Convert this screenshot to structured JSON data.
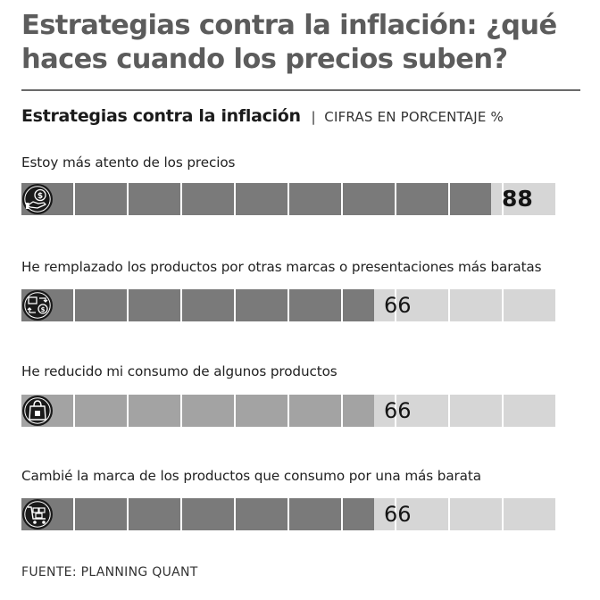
{
  "header": {
    "title": "Estrategias contra la inflación: ¿qué haces cuando los precios suben?"
  },
  "subtitle": {
    "label": "Estrategias contra la inflación",
    "separator": "|",
    "unit": "CIFRAS EN PORCENTAJE %"
  },
  "source": "FUENTE: PLANNING QUANT",
  "colors": {
    "title": "#5c5c5c",
    "bar_dark": "#7a7a7a",
    "bar_mid": "#a3a3a3",
    "bar_track": "#d6d6d6",
    "text": "#1e1e1e"
  },
  "chart_data": {
    "type": "bar",
    "orientation": "horizontal",
    "title": "Estrategias contra la inflación",
    "unit": "CIFRAS EN PORCENTAJE %",
    "xlim": [
      0,
      100
    ],
    "categories": [
      "Estoy más atento de los precios",
      "He remplazado los productos por otras marcas o presentaciones más baratas",
      "He reducido mi consumo de algunos productos",
      "Cambié la marca de los productos que consumo por una más barata"
    ],
    "values": [
      88,
      66,
      66,
      66
    ],
    "value_labels": [
      "88",
      "66",
      "66",
      "66"
    ],
    "icons": [
      "money-hand-icon",
      "swap-products-icon",
      "shopping-bag-icon",
      "cart-boxes-icon"
    ],
    "fill_shades": [
      "dark",
      "dark",
      "mid",
      "dark"
    ]
  }
}
